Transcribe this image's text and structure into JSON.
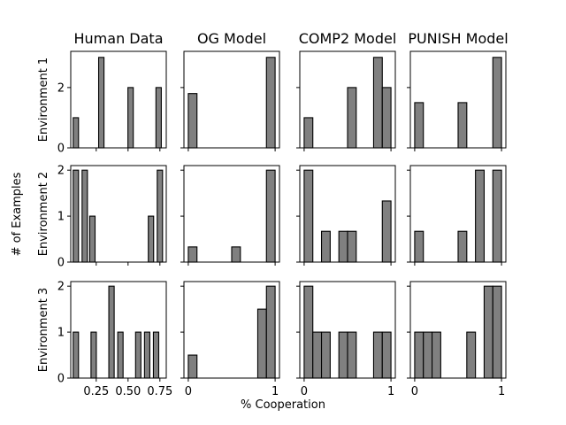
{
  "chart_data": {
    "type": "bar",
    "grid": false,
    "bar_color": "#808080",
    "edge_color": "#000000",
    "xlabel": "% Cooperation",
    "ylabel": "# of Examples",
    "columns": [
      {
        "title": "Human Data",
        "xlim": [
          0.05,
          0.8
        ],
        "xticks": [
          0.25,
          0.5,
          0.75
        ],
        "xtick_labels": [
          "0.25",
          "0.50",
          "0.75"
        ],
        "bin_width": 0.042
      },
      {
        "title": "OG Model",
        "xlim": [
          -0.05,
          1.05
        ],
        "xticks": [
          0,
          1
        ],
        "xtick_labels": [
          "0",
          "1"
        ],
        "bin_width": 0.1
      },
      {
        "title": "COMP2 Model",
        "xlim": [
          -0.05,
          1.05
        ],
        "xticks": [
          0,
          1
        ],
        "xtick_labels": [
          "0",
          "1"
        ],
        "bin_width": 0.1
      },
      {
        "title": "PUNISH Model",
        "xlim": [
          -0.05,
          1.05
        ],
        "xticks": [
          0,
          1
        ],
        "xtick_labels": [
          "0",
          "1"
        ],
        "bin_width": 0.1
      }
    ],
    "rows": [
      {
        "label": "Environment 1"
      },
      {
        "label": "Environment 2"
      },
      {
        "label": "Environment 3"
      }
    ],
    "panels": [
      [
        {
          "ylim": [
            0,
            3.2
          ],
          "yticks": [
            0,
            2
          ],
          "ytick_labels": [
            "0",
            "2"
          ],
          "bins": [
            {
              "x": 0.09,
              "v": 1
            },
            {
              "x": 0.29,
              "v": 3
            },
            {
              "x": 0.52,
              "v": 2
            },
            {
              "x": 0.74,
              "v": 2
            }
          ]
        },
        {
          "ylim": [
            0,
            3.2
          ],
          "yticks": [
            0,
            2
          ],
          "ytick_labels": [
            "",
            ""
          ],
          "bins": [
            {
              "x": 0.05,
              "v": 1.8
            },
            {
              "x": 0.95,
              "v": 3
            }
          ]
        },
        {
          "ylim": [
            0,
            3.2
          ],
          "yticks": [
            0,
            2
          ],
          "ytick_labels": [
            "",
            ""
          ],
          "bins": [
            {
              "x": 0.05,
              "v": 1
            },
            {
              "x": 0.55,
              "v": 2
            },
            {
              "x": 0.85,
              "v": 3
            },
            {
              "x": 0.95,
              "v": 2
            }
          ]
        },
        {
          "ylim": [
            0,
            3.2
          ],
          "yticks": [
            0,
            2
          ],
          "ytick_labels": [
            "",
            ""
          ],
          "bins": [
            {
              "x": 0.05,
              "v": 1.5
            },
            {
              "x": 0.55,
              "v": 1.5
            },
            {
              "x": 0.95,
              "v": 3
            }
          ]
        }
      ],
      [
        {
          "ylim": [
            0,
            2.1
          ],
          "yticks": [
            0,
            1,
            2
          ],
          "ytick_labels": [
            "0",
            "1",
            "2"
          ],
          "bins": [
            {
              "x": 0.09,
              "v": 2
            },
            {
              "x": 0.16,
              "v": 2
            },
            {
              "x": 0.22,
              "v": 1
            },
            {
              "x": 0.68,
              "v": 1
            },
            {
              "x": 0.75,
              "v": 2
            }
          ]
        },
        {
          "ylim": [
            0,
            2.1
          ],
          "yticks": [
            0,
            1,
            2
          ],
          "ytick_labels": [
            "",
            "",
            ""
          ],
          "bins": [
            {
              "x": 0.05,
              "v": 0.33
            },
            {
              "x": 0.55,
              "v": 0.33
            },
            {
              "x": 0.95,
              "v": 2
            }
          ]
        },
        {
          "ylim": [
            0,
            2.1
          ],
          "yticks": [
            0,
            1,
            2
          ],
          "ytick_labels": [
            "",
            "",
            ""
          ],
          "bins": [
            {
              "x": 0.05,
              "v": 2
            },
            {
              "x": 0.25,
              "v": 0.67
            },
            {
              "x": 0.45,
              "v": 0.67
            },
            {
              "x": 0.55,
              "v": 0.67
            },
            {
              "x": 0.95,
              "v": 1.33
            }
          ]
        },
        {
          "ylim": [
            0,
            2.1
          ],
          "yticks": [
            0,
            1,
            2
          ],
          "ytick_labels": [
            "",
            "",
            ""
          ],
          "bins": [
            {
              "x": 0.05,
              "v": 0.67
            },
            {
              "x": 0.55,
              "v": 0.67
            },
            {
              "x": 0.75,
              "v": 2
            },
            {
              "x": 0.95,
              "v": 2
            }
          ]
        }
      ],
      [
        {
          "ylim": [
            0,
            2.1
          ],
          "yticks": [
            0,
            1,
            2
          ],
          "ytick_labels": [
            "0",
            "1",
            "2"
          ],
          "bins": [
            {
              "x": 0.09,
              "v": 1
            },
            {
              "x": 0.23,
              "v": 1
            },
            {
              "x": 0.37,
              "v": 2
            },
            {
              "x": 0.44,
              "v": 1
            },
            {
              "x": 0.58,
              "v": 1
            },
            {
              "x": 0.65,
              "v": 1
            },
            {
              "x": 0.72,
              "v": 1
            }
          ]
        },
        {
          "ylim": [
            0,
            2.1
          ],
          "yticks": [
            0,
            1,
            2
          ],
          "ytick_labels": [
            "",
            "",
            ""
          ],
          "bins": [
            {
              "x": 0.05,
              "v": 0.5
            },
            {
              "x": 0.85,
              "v": 1.5
            },
            {
              "x": 0.95,
              "v": 2
            }
          ]
        },
        {
          "ylim": [
            0,
            2.1
          ],
          "yticks": [
            0,
            1,
            2
          ],
          "ytick_labels": [
            "",
            "",
            ""
          ],
          "bins": [
            {
              "x": 0.05,
              "v": 2
            },
            {
              "x": 0.15,
              "v": 1
            },
            {
              "x": 0.25,
              "v": 1
            },
            {
              "x": 0.45,
              "v": 1
            },
            {
              "x": 0.55,
              "v": 1
            },
            {
              "x": 0.85,
              "v": 1
            },
            {
              "x": 0.95,
              "v": 1
            }
          ]
        },
        {
          "ylim": [
            0,
            2.1
          ],
          "yticks": [
            0,
            1,
            2
          ],
          "ytick_labels": [
            "",
            "",
            ""
          ],
          "bins": [
            {
              "x": 0.05,
              "v": 1
            },
            {
              "x": 0.15,
              "v": 1
            },
            {
              "x": 0.25,
              "v": 1
            },
            {
              "x": 0.65,
              "v": 1
            },
            {
              "x": 0.85,
              "v": 2
            },
            {
              "x": 0.95,
              "v": 2
            }
          ]
        }
      ]
    ]
  }
}
